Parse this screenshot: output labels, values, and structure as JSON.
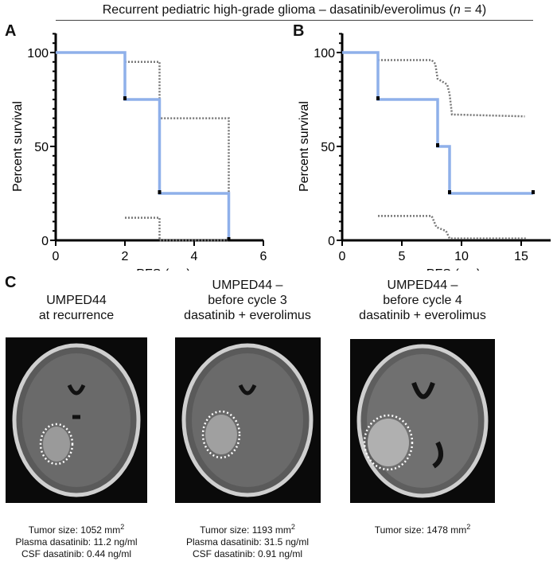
{
  "figure_title": {
    "prefix": "Recurrent pediatric high-grade glioma – dasatinib/everolimus (",
    "n": "n",
    "suffix": " = 4)"
  },
  "panel_labels": [
    "A",
    "B",
    "C"
  ],
  "colors": {
    "km_line": "#8fb0ea",
    "ci_line": "#777777",
    "censor": "#000000"
  },
  "chart_data": [
    {
      "type": "line",
      "panel": "A",
      "xlabel": "PFS (mo)",
      "ylabel": "Percent survival",
      "xlim": [
        0,
        6
      ],
      "ylim": [
        0,
        100
      ],
      "xticks": [
        0,
        2,
        4,
        6
      ],
      "yticks": [
        0,
        50,
        100
      ],
      "grid": false,
      "survival": [
        [
          0,
          100
        ],
        [
          2,
          100
        ],
        [
          2,
          75
        ],
        [
          3,
          75
        ],
        [
          3,
          25
        ],
        [
          5,
          25
        ],
        [
          5,
          0
        ]
      ],
      "censor_marks": [
        [
          2,
          75
        ],
        [
          3,
          25
        ],
        [
          5,
          0
        ]
      ],
      "ci_upper": [
        [
          2,
          95
        ],
        [
          3,
          95
        ],
        [
          3,
          65
        ],
        [
          5,
          65
        ],
        [
          5,
          25
        ]
      ],
      "ci_lower": [
        [
          2,
          12
        ],
        [
          3,
          12
        ],
        [
          3,
          0
        ],
        [
          5,
          0
        ]
      ]
    },
    {
      "type": "line",
      "panel": "B",
      "xlabel": "PFS (mo)",
      "ylabel": "Percent survival",
      "xlim": [
        0,
        18
      ],
      "ylim": [
        0,
        100
      ],
      "xticks": [
        0,
        5,
        10,
        15
      ],
      "yticks": [
        0,
        50,
        100
      ],
      "grid": false,
      "survival": [
        [
          0,
          100
        ],
        [
          3,
          100
        ],
        [
          3,
          75
        ],
        [
          8,
          75
        ],
        [
          8,
          50
        ],
        [
          9,
          50
        ],
        [
          9,
          25
        ],
        [
          16,
          25
        ]
      ],
      "censor_marks": [
        [
          3,
          75
        ],
        [
          8,
          50
        ],
        [
          9,
          25
        ],
        [
          16,
          25
        ]
      ],
      "ci_upper": [
        [
          3,
          96
        ],
        [
          7.5,
          96
        ],
        [
          7.8,
          94
        ],
        [
          8,
          86
        ],
        [
          8.8,
          83
        ],
        [
          9,
          78
        ],
        [
          9.2,
          67
        ],
        [
          15.3,
          66
        ]
      ],
      "ci_lower": [
        [
          3,
          13
        ],
        [
          7.5,
          13
        ],
        [
          7.9,
          7
        ],
        [
          8.7,
          5
        ],
        [
          9,
          1
        ],
        [
          15.5,
          1
        ]
      ]
    }
  ],
  "panel_c": [
    {
      "caption": [
        "UMPED44",
        "at recurrence"
      ],
      "stats": {
        "tumor": "Tumor size: 1052 mm",
        "plasma": "Plasma dasatinib: 11.2 ng/ml",
        "csf": "CSF dasatinib: 0.44 ng/ml"
      }
    },
    {
      "caption": [
        "UMPED44 –",
        "before cycle 3",
        "dasatinib + everolimus"
      ],
      "stats": {
        "tumor": "Tumor size: 1193 mm",
        "plasma": "Plasma dasatinib: 31.5 ng/ml",
        "csf": "CSF dasatinib: 0.91 ng/ml"
      }
    },
    {
      "caption": [
        "UMPED44 –",
        "before cycle 4",
        "dasatinib + everolimus"
      ],
      "stats": {
        "tumor": "Tumor size: 1478 mm"
      }
    }
  ],
  "sq": "2"
}
